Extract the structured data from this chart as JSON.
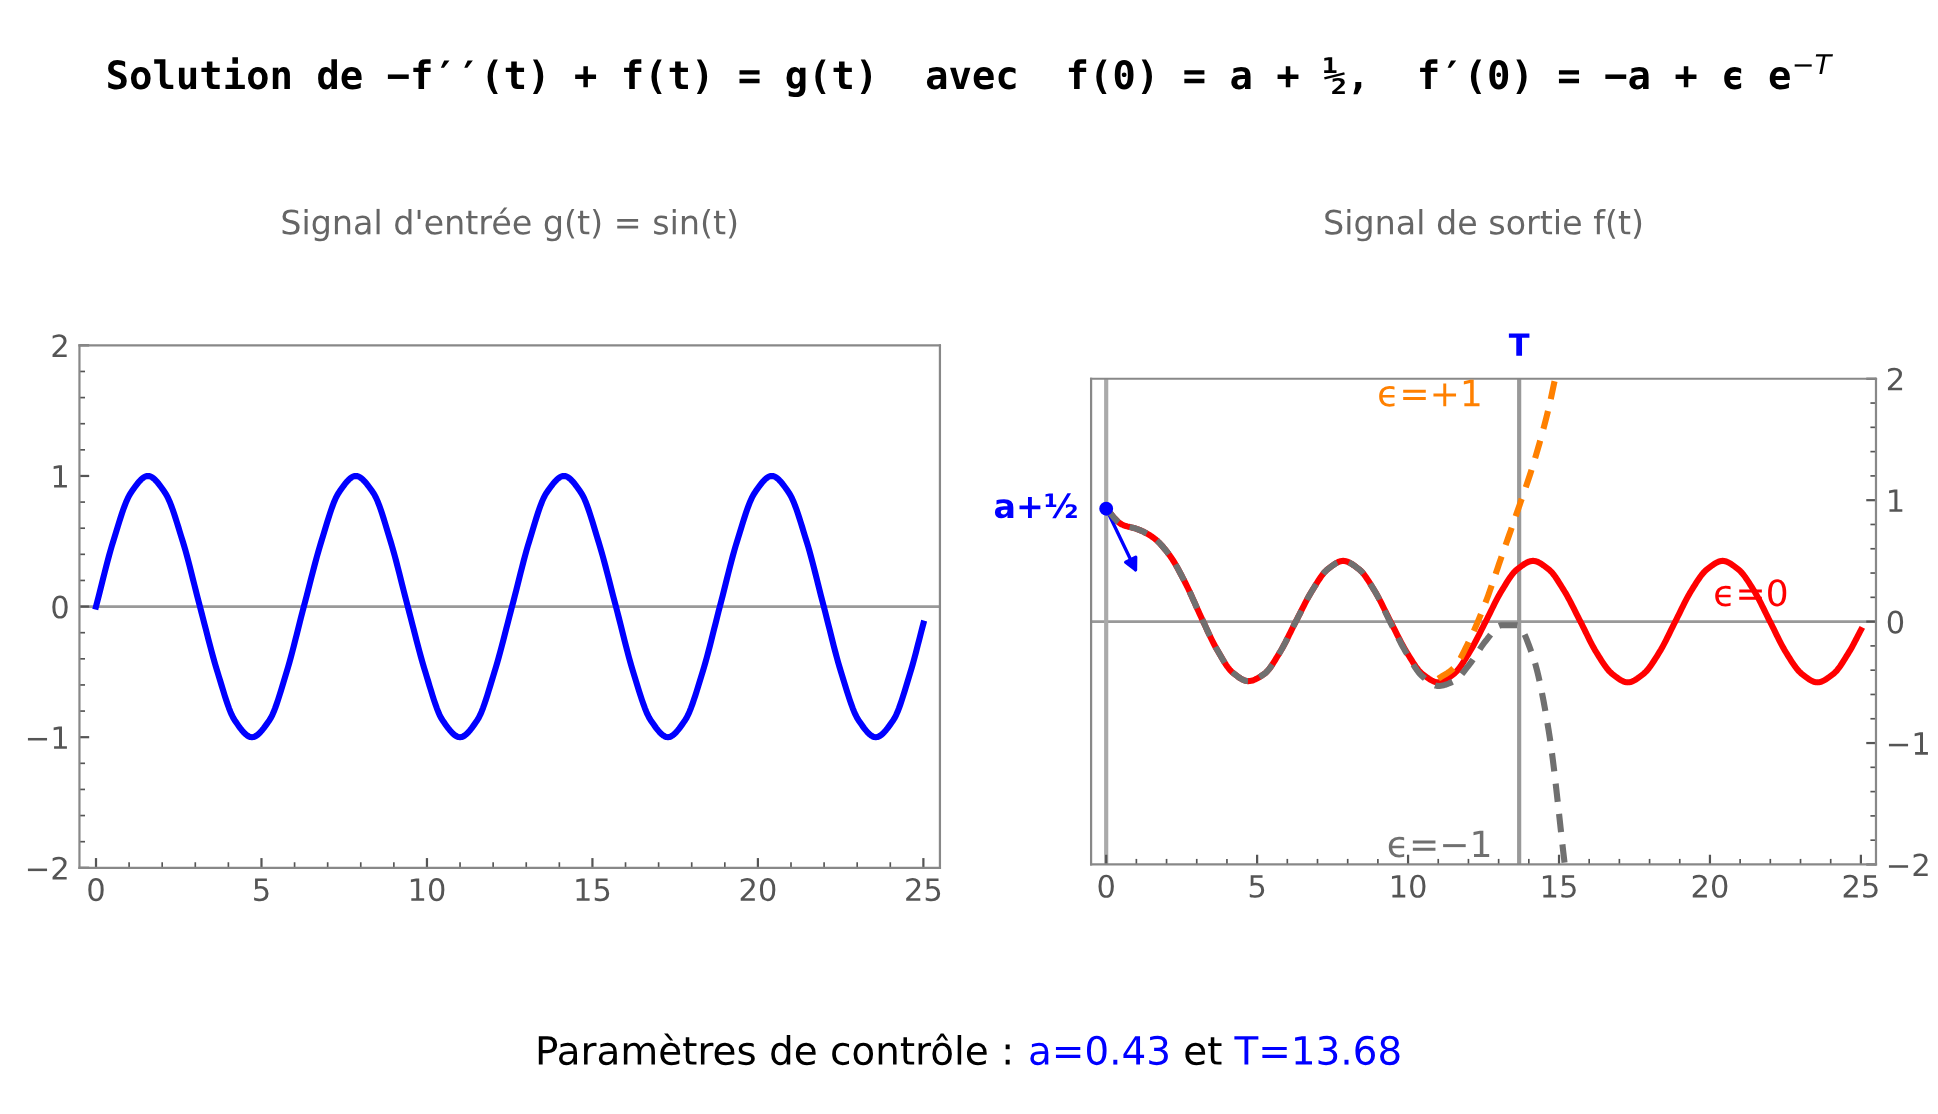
{
  "chart_data": [
    {
      "type": "line",
      "title": "Signal d'entrée g(t) = sin(t)",
      "annotations": [
        "Solution de −f′′(t) + f(t) = g(t)  avec  f(0) = a + ½,  f′(0) = −a + ϵ e$^{−T}$",
        "Paramètres de contrôle :",
        "a=0.43",
        "et",
        "T=13.68"
      ],
      "x": [
        0,
        0.52,
        1.05,
        1.57,
        2.09,
        2.62,
        3.14,
        3.67,
        4.19,
        4.71,
        5.24,
        5.76,
        6.28,
        6.81,
        7.33,
        7.85,
        8.38,
        8.9,
        9.42,
        9.95,
        10.47,
        11.0,
        11.52,
        12.04,
        12.57,
        13.09,
        13.61,
        14.14,
        14.66,
        15.18,
        15.71,
        16.23,
        16.76,
        17.28,
        17.8,
        18.33,
        18.85,
        19.37,
        19.9,
        20.42,
        20.94,
        21.47,
        21.99,
        22.51,
        23.04,
        23.56,
        24.09,
        24.61,
        25
      ],
      "series": [
        {
          "color": "#0000ff",
          "values": [
            0,
            0.5,
            0.87,
            1,
            0.87,
            0.5,
            0,
            -0.5,
            -0.87,
            -1,
            -0.87,
            -0.5,
            0,
            0.5,
            0.87,
            1,
            0.87,
            0.5,
            0,
            -0.5,
            -0.87,
            -1,
            -0.87,
            -0.5,
            0,
            0.5,
            0.87,
            1,
            0.87,
            0.5,
            0,
            -0.5,
            -0.87,
            -1,
            -0.87,
            -0.5,
            0,
            0.5,
            0.87,
            1,
            0.87,
            0.5,
            0,
            -0.5,
            -0.87,
            -1,
            -0.87,
            -0.5,
            -0.13
          ]
        }
      ],
      "xlim": [
        -0.5,
        25.5
      ],
      "xticks": [
        0,
        5,
        10,
        15,
        20,
        25
      ],
      "ylim": [
        -2,
        2
      ],
      "yticks": [
        -2,
        -1,
        0,
        1,
        2
      ],
      "ref_lines": [
        {
          "axis": "y",
          "value": 0,
          "color": "#999999"
        }
      ],
      "grid": false,
      "legend": false,
      "marker": "none",
      "line_style": "solid"
    },
    {
      "type": "line",
      "title": "Signal de sortie f(t)",
      "annotations": [
        {
          "text": "a+½",
          "x": 0,
          "y": 0.93
        }
      ],
      "x": [
        0,
        0.52,
        1.05,
        1.57,
        2.09,
        2.62,
        3.14,
        3.67,
        4.19,
        4.71,
        5.24,
        5.76,
        6.28,
        6.81,
        7.33,
        7.85,
        8.38,
        8.9,
        9.42,
        9.95,
        10.47,
        11.0,
        11.52,
        12.04,
        12.57,
        13.09,
        13.61,
        14.14,
        14.66,
        15.18,
        15.71,
        16.23,
        16.76,
        17.28,
        17.8,
        18.33,
        18.85,
        19.37,
        19.9,
        20.42,
        20.94,
        21.47,
        21.99,
        22.51,
        23.04,
        23.56,
        24.09,
        24.61,
        25
      ],
      "series": [
        {
          "name": "ϵ=0",
          "color": "#ff0000",
          "line_style": "solid",
          "values": [
            0.93,
            0.8,
            0.76,
            0.69,
            0.55,
            0.32,
            0.04,
            -0.23,
            -0.42,
            -0.49,
            -0.43,
            -0.25,
            0,
            0.25,
            0.43,
            0.5,
            0.43,
            0.25,
            0,
            -0.25,
            -0.43,
            -0.5,
            -0.43,
            -0.25,
            0,
            0.25,
            0.43,
            0.5,
            0.43,
            0.25,
            0,
            -0.25,
            -0.43,
            -0.5,
            -0.43,
            -0.25,
            0,
            0.25,
            0.43,
            0.5,
            0.43,
            0.25,
            0,
            -0.25,
            -0.43,
            -0.5,
            -0.43,
            -0.25,
            -0.07
          ]
        },
        {
          "name": "ϵ=+1",
          "color": "#ff8000",
          "line_style": "dashed",
          "x": [
            11.0,
            11.52,
            12.04,
            12.57,
            13.09,
            13.61,
            14.14,
            14.66,
            14.87
          ],
          "values": [
            -0.47,
            -0.38,
            -0.15,
            0.16,
            0.53,
            0.9,
            1.29,
            1.76,
            2.0
          ]
        },
        {
          "name": "ϵ=−1",
          "color": "#707070",
          "line_style": "dashed",
          "x": [
            0,
            0.52,
            1.05,
            1.57,
            2.09,
            2.62,
            3.14,
            3.67,
            4.19,
            4.71,
            5.24,
            5.76,
            6.28,
            6.81,
            7.33,
            7.85,
            8.38,
            8.9,
            9.42,
            9.95,
            10.47,
            11.0,
            11.52,
            12.04,
            12.57,
            13.09,
            13.61,
            14.14,
            14.66,
            15.19
          ],
          "values": [
            0.93,
            0.8,
            0.76,
            0.69,
            0.55,
            0.32,
            0.04,
            -0.23,
            -0.42,
            -0.49,
            -0.43,
            -0.25,
            0,
            0.25,
            0.43,
            0.5,
            0.43,
            0.25,
            -0.01,
            -0.26,
            -0.45,
            -0.53,
            -0.49,
            -0.35,
            -0.16,
            -0.03,
            -0.03,
            -0.29,
            -0.9,
            -2.0
          ]
        }
      ],
      "xlim": [
        -0.5,
        25.5
      ],
      "xticks": [
        0,
        5,
        10,
        15,
        20,
        25
      ],
      "ylim": [
        -2,
        2
      ],
      "yticks": [
        -2,
        -1,
        0,
        1,
        2
      ],
      "ref_lines": [
        {
          "axis": "y",
          "value": 0,
          "color": "#999999"
        },
        {
          "axis": "x",
          "value": 0,
          "color": "#aaaaaa"
        },
        {
          "axis": "x",
          "value": 13.68,
          "label": "T",
          "color": "#999999"
        }
      ],
      "grid": false,
      "legend": false,
      "marker": "none"
    }
  ]
}
